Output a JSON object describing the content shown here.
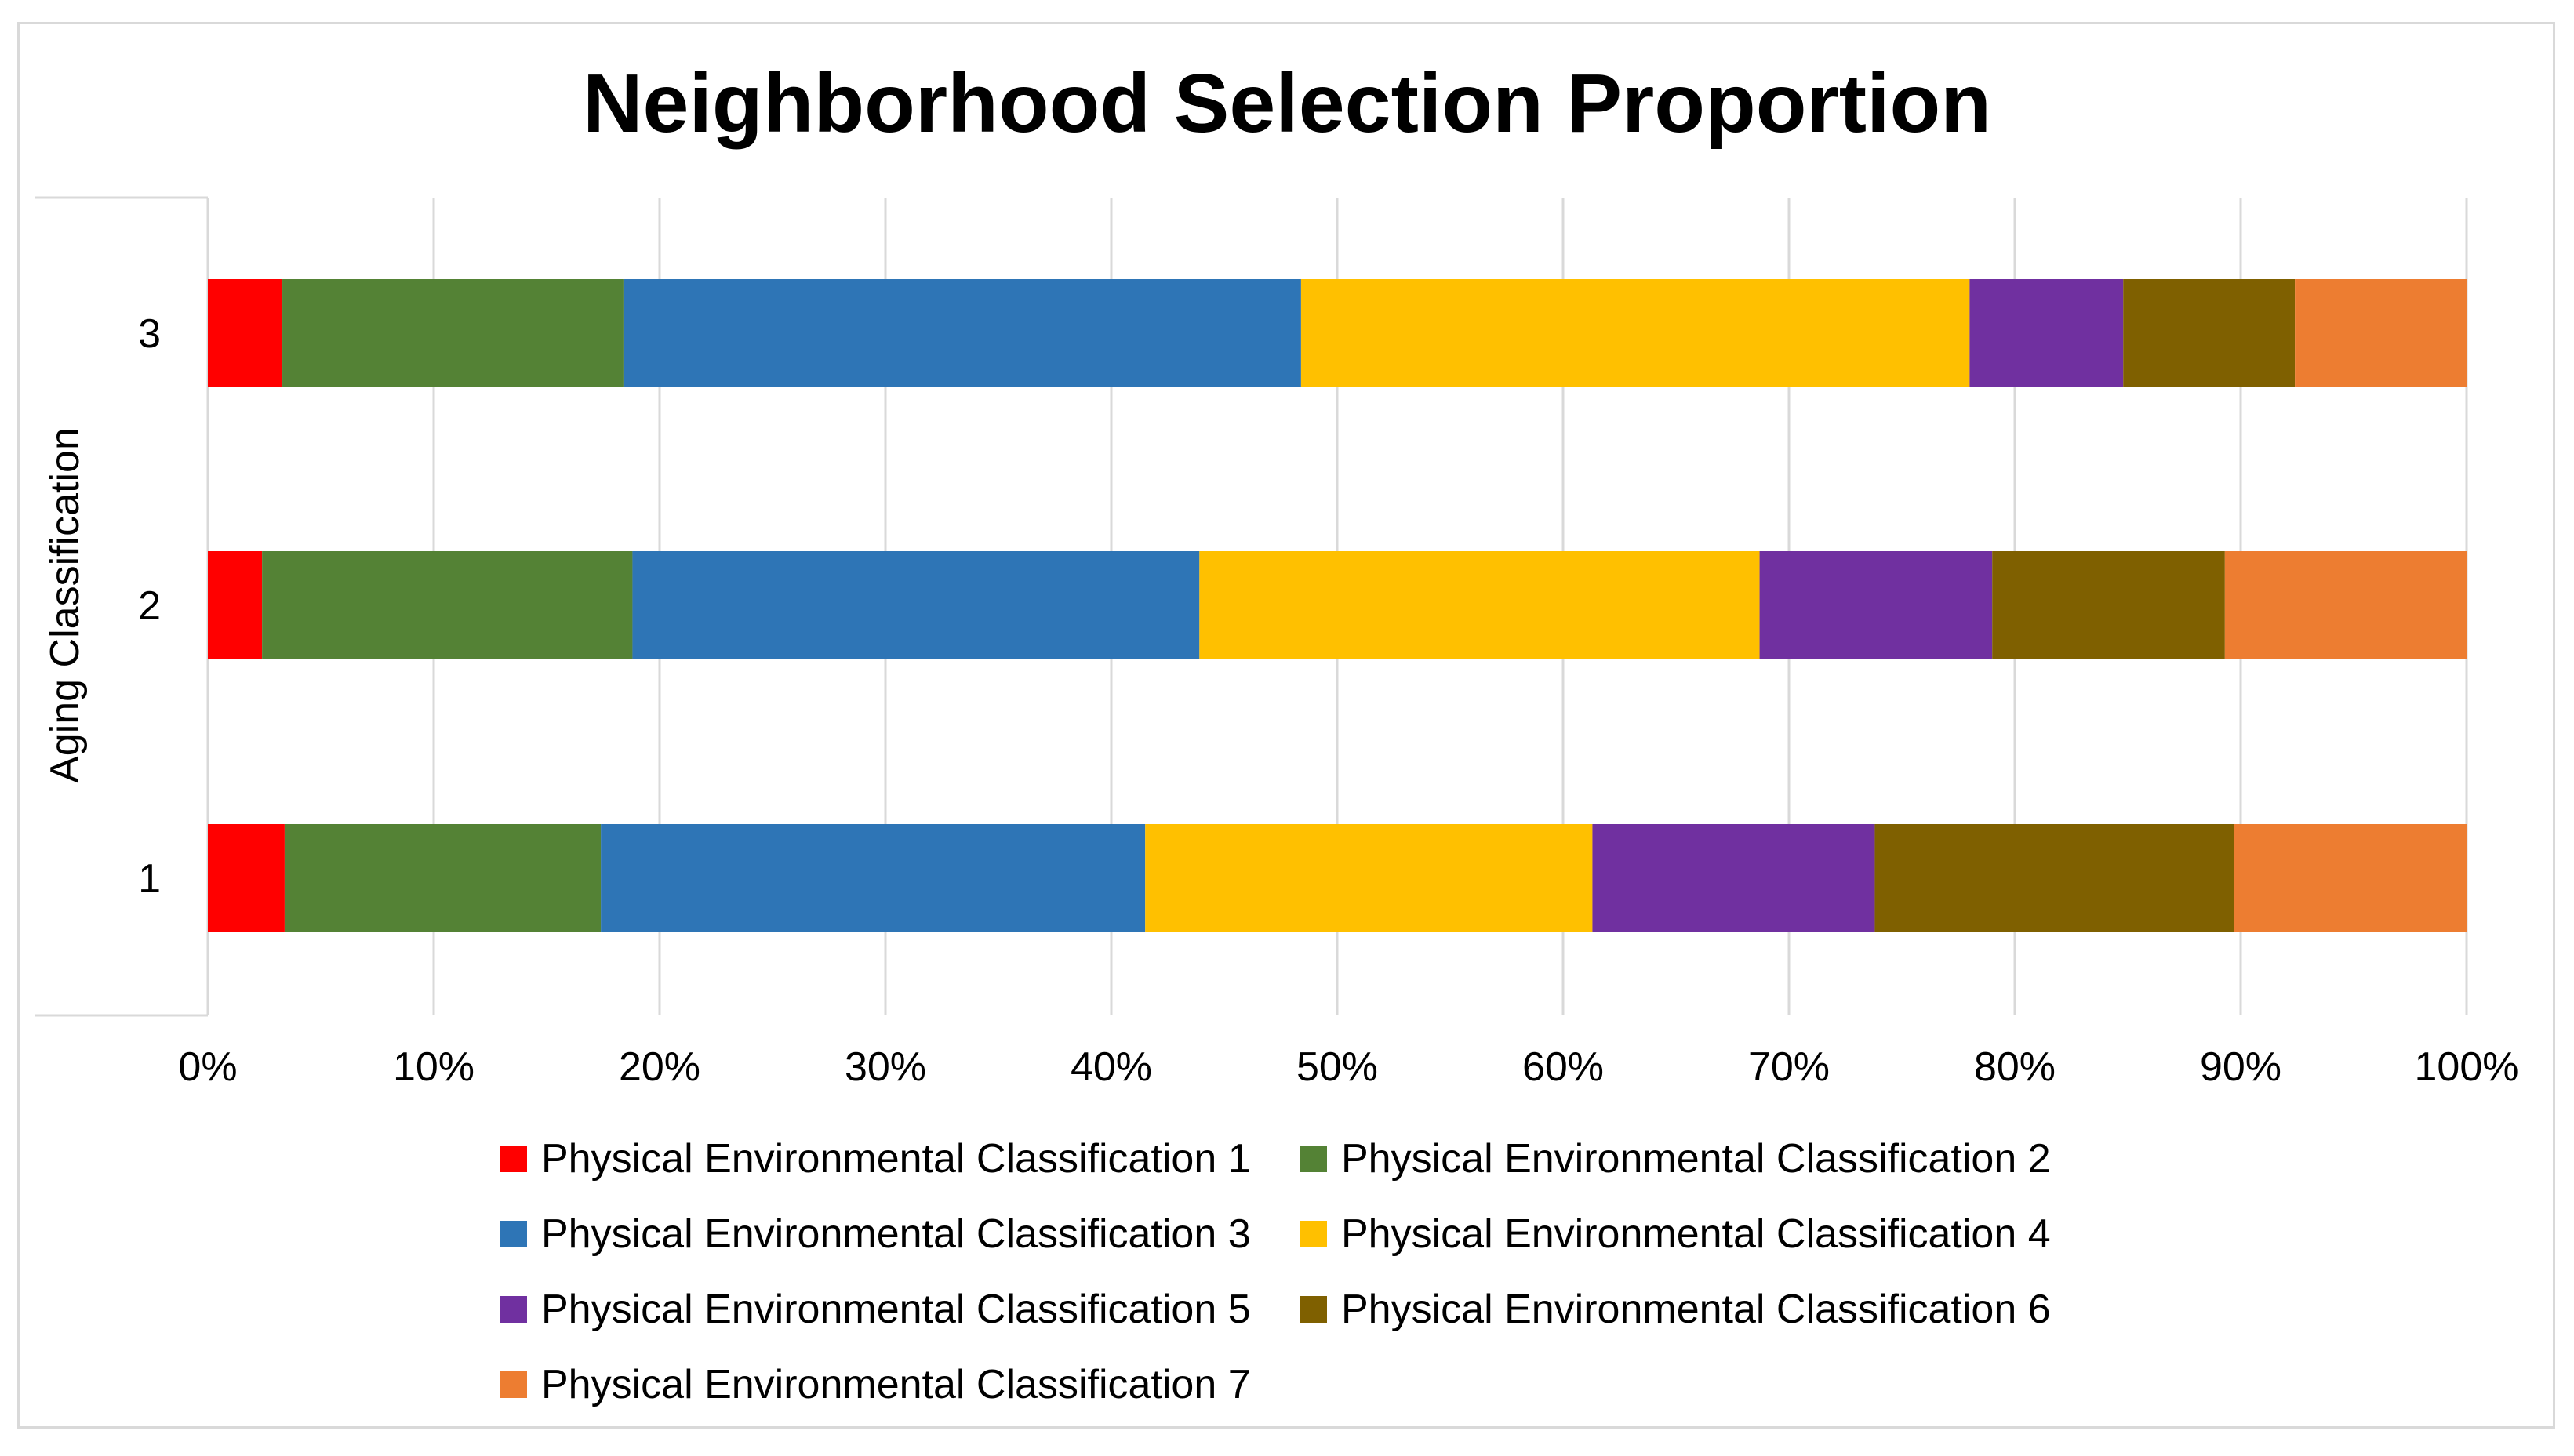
{
  "chart_data": {
    "type": "bar",
    "orientation": "horizontal",
    "stacked": "percent",
    "title": "Neighborhood Selection Proportion",
    "xlabel": "",
    "ylabel": "Aging Classification",
    "categories": [
      "1",
      "2",
      "3"
    ],
    "xlim": [
      0,
      100
    ],
    "x_ticks": [
      "0%",
      "10%",
      "20%",
      "30%",
      "40%",
      "50%",
      "60%",
      "70%",
      "80%",
      "90%",
      "100%"
    ],
    "grid": "vertical",
    "legend_position": "bottom",
    "series": [
      {
        "name": "Physical Environmental Classification 1",
        "color": "#ff0000",
        "values": [
          3.4,
          2.4,
          3.3
        ]
      },
      {
        "name": "Physical Environmental Classification 2",
        "color": "#548235",
        "values": [
          14.0,
          16.4,
          15.1
        ]
      },
      {
        "name": "Physical Environmental Classification 3",
        "color": "#2e75b6",
        "values": [
          24.1,
          25.1,
          30.0
        ]
      },
      {
        "name": "Physical Environmental Classification 4",
        "color": "#ffc000",
        "values": [
          19.8,
          24.8,
          29.6
        ]
      },
      {
        "name": "Physical Environmental Classification 5",
        "color": "#7030a0",
        "values": [
          12.5,
          10.3,
          6.8
        ]
      },
      {
        "name": "Physical Environmental Classification 6",
        "color": "#7f6000",
        "values": [
          15.9,
          10.3,
          7.6
        ]
      },
      {
        "name": "Physical Environmental Classification 7",
        "color": "#ed7d31",
        "values": [
          10.3,
          10.7,
          7.6
        ]
      }
    ]
  }
}
